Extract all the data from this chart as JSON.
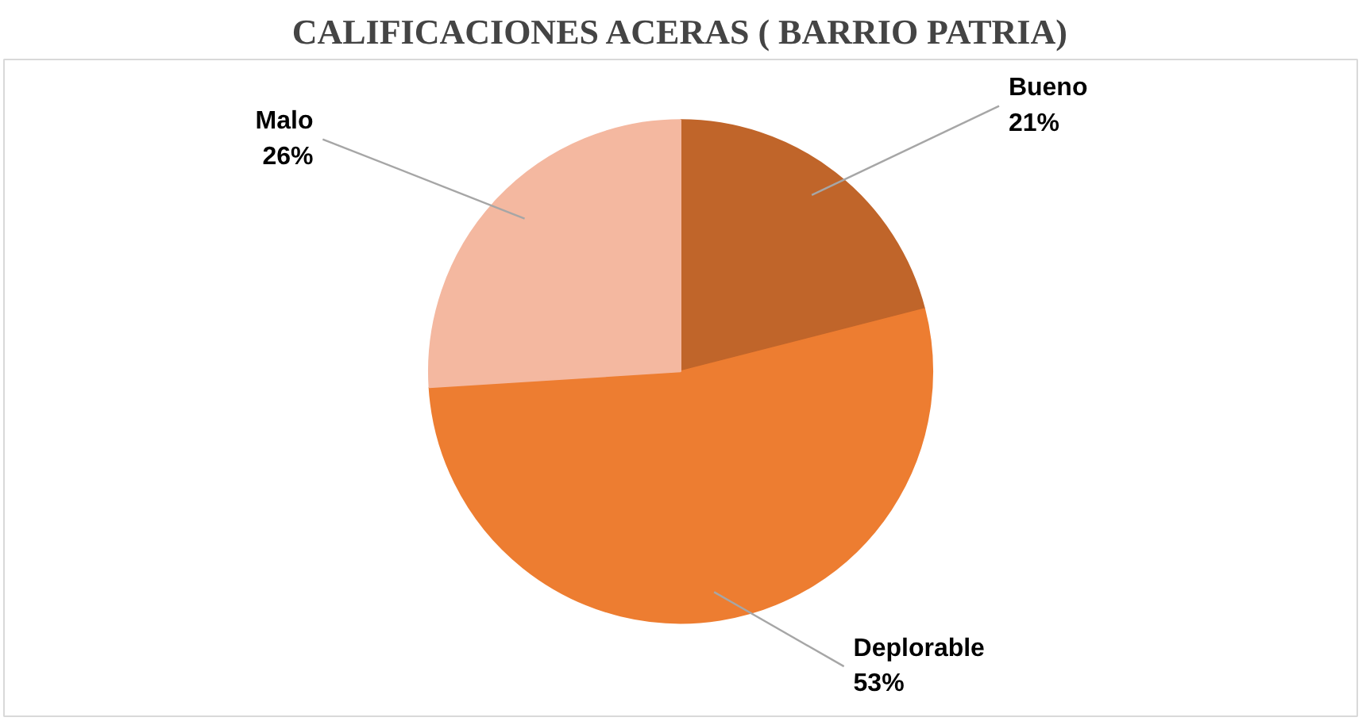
{
  "chart_data": {
    "type": "pie",
    "title": "CALIFICACIONES ACERAS ( BARRIO PATRIA)",
    "categories": [
      "Bueno",
      "Deplorable",
      "Malo"
    ],
    "values": [
      21,
      53,
      26
    ],
    "colors": [
      "#c0652a",
      "#ed7d31",
      "#f4b8a0"
    ],
    "value_labels": [
      "21%",
      "53%",
      "26%"
    ]
  }
}
